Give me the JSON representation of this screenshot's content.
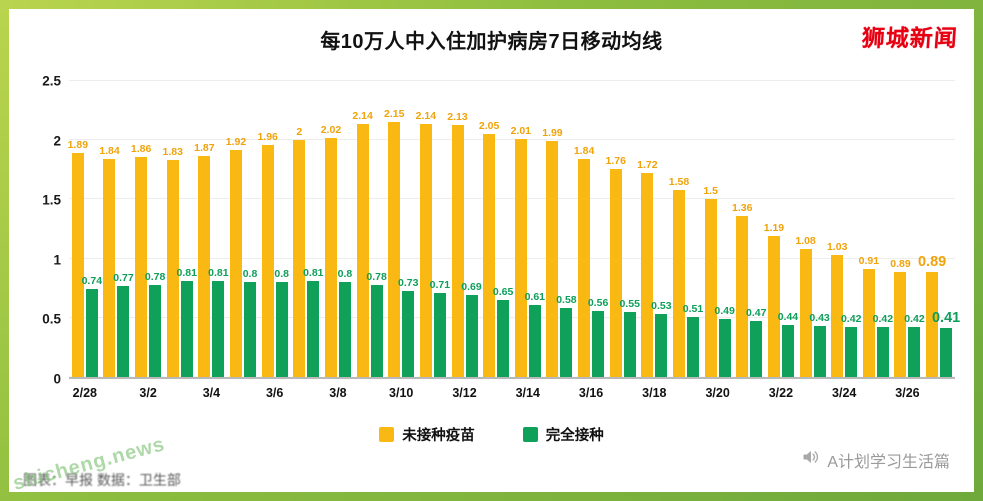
{
  "brand": {
    "logo_text": "狮城新闻",
    "credit": "A计划学习生活篇"
  },
  "watermark": "shicheng.news",
  "footer_caption": "图表：早报 数据：卫生部",
  "legend": [
    {
      "label": "未接种疫苗",
      "color": "#f9b812"
    },
    {
      "label": "完全接种",
      "color": "#0fa05a"
    }
  ],
  "chart_data": {
    "type": "bar",
    "title": "每10万人中入住加护病房7日移动均线",
    "categories": [
      "2/28",
      "",
      "3/2",
      "",
      "3/4",
      "",
      "3/6",
      "",
      "3/8",
      "",
      "3/10",
      "",
      "3/12",
      "",
      "3/14",
      "",
      "3/16",
      "",
      "3/18",
      "",
      "3/20",
      "",
      "3/22",
      "",
      "3/24",
      "",
      "3/26",
      ""
    ],
    "series": [
      {
        "name": "未接种疫苗",
        "color": "#f9b812",
        "label_color": "#f0a30a",
        "values": [
          1.89,
          1.84,
          1.86,
          1.83,
          1.87,
          1.92,
          1.96,
          2,
          2.02,
          2.14,
          2.15,
          2.14,
          2.13,
          2.05,
          2.01,
          1.99,
          1.84,
          1.76,
          1.72,
          1.58,
          1.5,
          1.36,
          1.19,
          1.08,
          1.03,
          0.91,
          0.89,
          0.89
        ]
      },
      {
        "name": "完全接种",
        "color": "#0fa05a",
        "label_color": "#0e9f5a",
        "values": [
          0.74,
          0.77,
          0.78,
          0.81,
          0.81,
          0.8,
          0.8,
          0.81,
          0.8,
          0.78,
          0.73,
          0.71,
          0.69,
          0.65,
          0.61,
          0.58,
          0.56,
          0.55,
          0.53,
          0.51,
          0.49,
          0.47,
          0.44,
          0.43,
          0.42,
          0.42,
          0.42,
          0.41
        ]
      }
    ],
    "ylim": [
      0,
      2.5
    ],
    "y_ticks": [
      0,
      0.5,
      1,
      1.5,
      2,
      2.5
    ],
    "grid": true,
    "legend_position": "bottom",
    "highlight_last_labels": true
  }
}
